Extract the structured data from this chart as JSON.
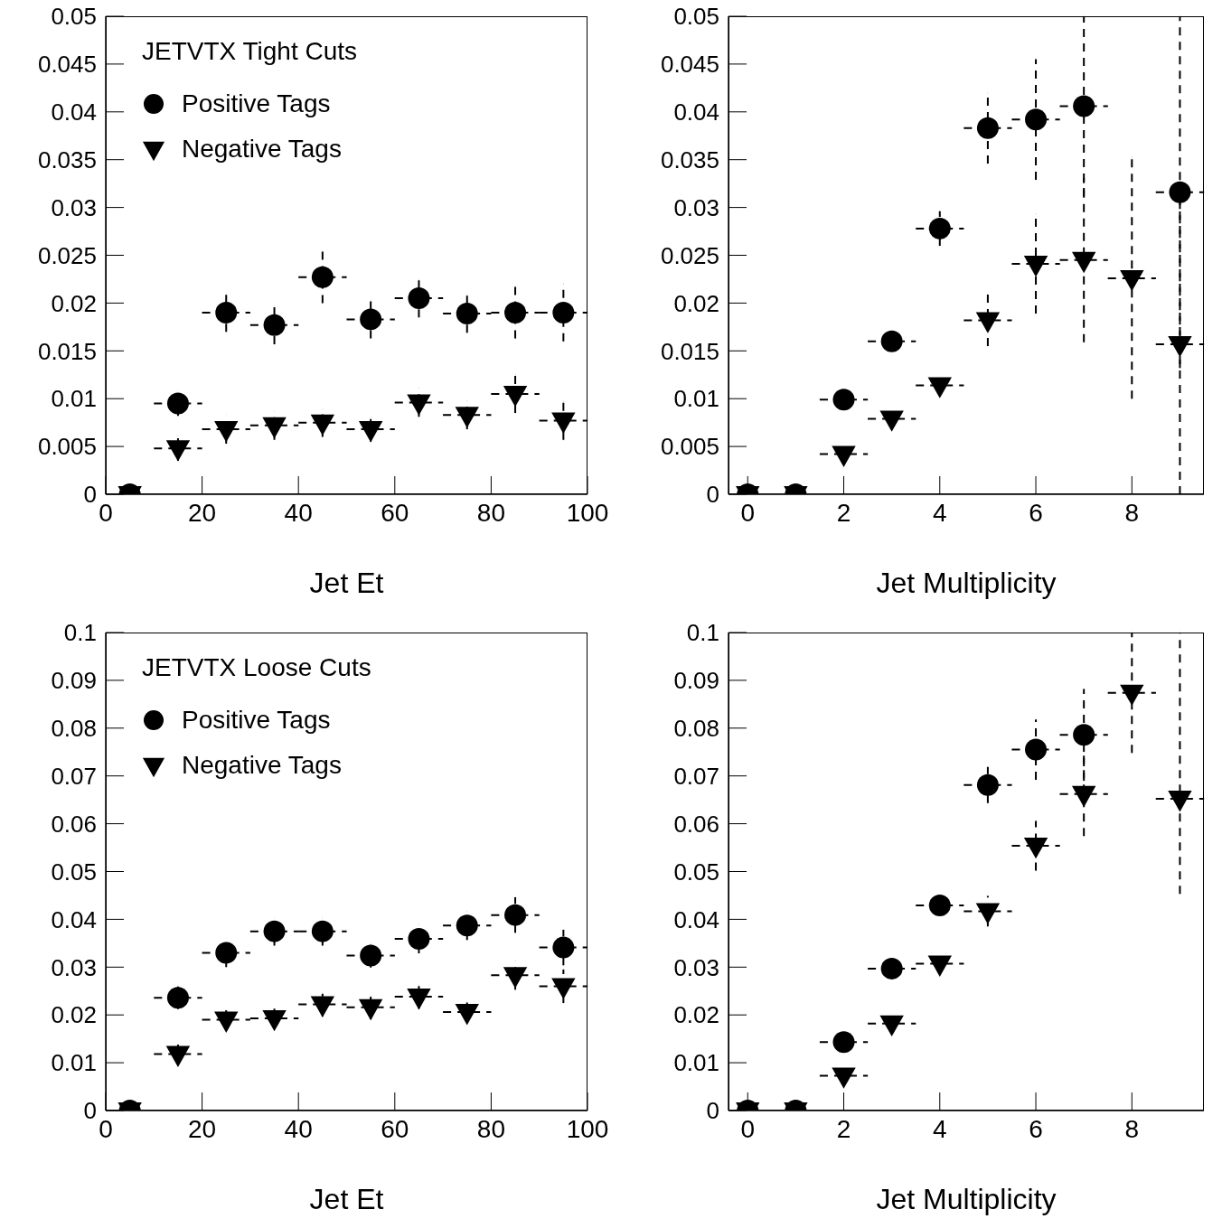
{
  "chart_data": [
    {
      "type": "scatter",
      "legend_title": "JETVTX Tight Cuts",
      "xlabel": "Jet Et",
      "legend": "top left",
      "xlim": [
        0,
        100
      ],
      "xticks": [
        0,
        20,
        40,
        60,
        80,
        100
      ],
      "ylim": [
        0,
        0.05
      ],
      "yticks": [
        0,
        0.005,
        0.01,
        0.015,
        0.02,
        0.025,
        0.03,
        0.035,
        0.04,
        0.045,
        0.05
      ],
      "x": [
        5,
        15,
        25,
        35,
        45,
        55,
        65,
        75,
        85,
        95
      ],
      "series": [
        {
          "name": "Positive Tags",
          "color": "#000000",
          "marker": "circle",
          "values": [
            0,
            0.0095,
            0.019,
            0.0177,
            0.0227,
            0.0183,
            0.0205,
            0.0189,
            0.019,
            0.019
          ],
          "errors": [
            null,
            0.0013,
            0.002,
            0.002,
            0.0027,
            0.002,
            0.002,
            0.002,
            0.0027,
            0.003
          ],
          "xerrors": [
            null,
            5,
            5,
            5,
            5,
            5,
            5,
            5,
            5,
            5
          ]
        },
        {
          "name": "Negative Tags",
          "color": "#000000",
          "marker": "triangle",
          "values": [
            0,
            0.0048,
            0.0068,
            0.0072,
            0.0075,
            0.0068,
            0.0096,
            0.0083,
            0.0105,
            0.0077
          ],
          "errors": [
            null,
            0.0013,
            0.0015,
            0.0015,
            0.0015,
            0.0013,
            0.0015,
            0.0015,
            0.002,
            0.002
          ],
          "xerrors": [
            null,
            5,
            5,
            5,
            5,
            5,
            5,
            5,
            5,
            5
          ]
        }
      ]
    },
    {
      "type": "scatter",
      "xlabel": "Jet Multiplicity",
      "xlim": [
        -0.4,
        9.5
      ],
      "xticks": [
        0,
        2,
        4,
        6,
        8
      ],
      "ylim": [
        0,
        0.05
      ],
      "yticks": [
        0,
        0.005,
        0.01,
        0.015,
        0.02,
        0.025,
        0.03,
        0.035,
        0.04,
        0.045,
        0.05
      ],
      "x": [
        0,
        1,
        2,
        3,
        4,
        5,
        6,
        7,
        8,
        9
      ],
      "series": [
        {
          "color": "#000000",
          "marker": "circle",
          "values": [
            0,
            0,
            0.0099,
            0.016,
            0.0278,
            0.0383,
            0.0392,
            0.0406,
            null,
            0.0316
          ],
          "errors": [
            null,
            null,
            0.0008,
            0.001,
            0.0018,
            0.0037,
            0.0063,
            0.0094,
            null,
            0.0184
          ],
          "xerrors": [
            null,
            null,
            0.5,
            0.5,
            0.5,
            0.5,
            0.5,
            0.5,
            null,
            0.5
          ]
        },
        {
          "color": "#000000",
          "marker": "triangle",
          "values": [
            0,
            0,
            0.0042,
            0.0079,
            0.0114,
            0.0182,
            0.0241,
            0.0245,
            0.0226,
            0.0157
          ],
          "errors": [
            null,
            null,
            0.0005,
            0.0005,
            0.0008,
            0.0027,
            0.0052,
            0.0086,
            0.0126,
            0.0157
          ],
          "xerrors": [
            null,
            null,
            0.5,
            0.5,
            0.5,
            0.5,
            0.5,
            0.5,
            0.5,
            0.5
          ]
        }
      ]
    },
    {
      "type": "scatter",
      "legend_title": "JETVTX Loose Cuts",
      "xlabel": "Jet Et",
      "legend": "top left",
      "xlim": [
        0,
        100
      ],
      "xticks": [
        0,
        20,
        40,
        60,
        80,
        100
      ],
      "ylim": [
        0,
        0.1
      ],
      "yticks": [
        0,
        0.01,
        0.02,
        0.03,
        0.04,
        0.05,
        0.06,
        0.07,
        0.08,
        0.09,
        0.1
      ],
      "x": [
        5,
        15,
        25,
        35,
        45,
        55,
        65,
        75,
        85,
        95
      ],
      "series": [
        {
          "name": "Positive Tags",
          "color": "#000000",
          "marker": "circle",
          "values": [
            0,
            0.0236,
            0.033,
            0.0375,
            0.0375,
            0.0324,
            0.0359,
            0.0387,
            0.0409,
            0.0341
          ],
          "errors": [
            null,
            0.0024,
            0.003,
            0.003,
            0.003,
            0.0025,
            0.003,
            0.003,
            0.0037,
            0.0037
          ],
          "xerrors": [
            null,
            5,
            5,
            5,
            5,
            5,
            5,
            5,
            5,
            5
          ]
        },
        {
          "name": "Negative Tags",
          "color": "#000000",
          "marker": "triangle",
          "values": [
            0,
            0.0118,
            0.019,
            0.0193,
            0.0222,
            0.0216,
            0.0238,
            0.0206,
            0.0283,
            0.026
          ],
          "errors": [
            null,
            0.002,
            0.002,
            0.002,
            0.0025,
            0.0025,
            0.0025,
            0.002,
            0.003,
            0.0035
          ],
          "xerrors": [
            null,
            5,
            5,
            5,
            5,
            5,
            5,
            5,
            5,
            5
          ]
        }
      ]
    },
    {
      "type": "scatter",
      "xlabel": "Jet Multiplicity",
      "xlim": [
        -0.4,
        9.5
      ],
      "xticks": [
        0,
        2,
        4,
        6,
        8
      ],
      "ylim": [
        0,
        0.1
      ],
      "yticks": [
        0,
        0.01,
        0.02,
        0.03,
        0.04,
        0.05,
        0.06,
        0.07,
        0.08,
        0.09,
        0.1
      ],
      "x": [
        0,
        1,
        2,
        3,
        4,
        5,
        6,
        7,
        8,
        9
      ],
      "series": [
        {
          "color": "#000000",
          "marker": "circle",
          "values": [
            0,
            0,
            0.0143,
            0.0297,
            0.0429,
            0.0681,
            0.0755,
            0.0786,
            null,
            null
          ],
          "errors": [
            null,
            null,
            0.001,
            0.001,
            0.0013,
            0.0038,
            0.0063,
            0.0096,
            null,
            null
          ],
          "xerrors": [
            null,
            null,
            0.5,
            0.5,
            0.5,
            0.5,
            0.5,
            0.5,
            null,
            null
          ]
        },
        {
          "color": "#000000",
          "marker": "triangle",
          "values": [
            0,
            0,
            0.0073,
            0.0182,
            0.0307,
            0.0417,
            0.0554,
            0.0662,
            0.0874,
            0.0652
          ],
          "errors": [
            null,
            null,
            0.0005,
            0.0005,
            0.0005,
            0.0032,
            0.0052,
            0.0088,
            0.0126,
            [
              0.0453,
              0.1
            ]
          ],
          "xerrors": [
            null,
            null,
            0.5,
            0.5,
            0.5,
            0.5,
            0.5,
            0.5,
            0.5,
            0.5
          ]
        }
      ]
    }
  ]
}
